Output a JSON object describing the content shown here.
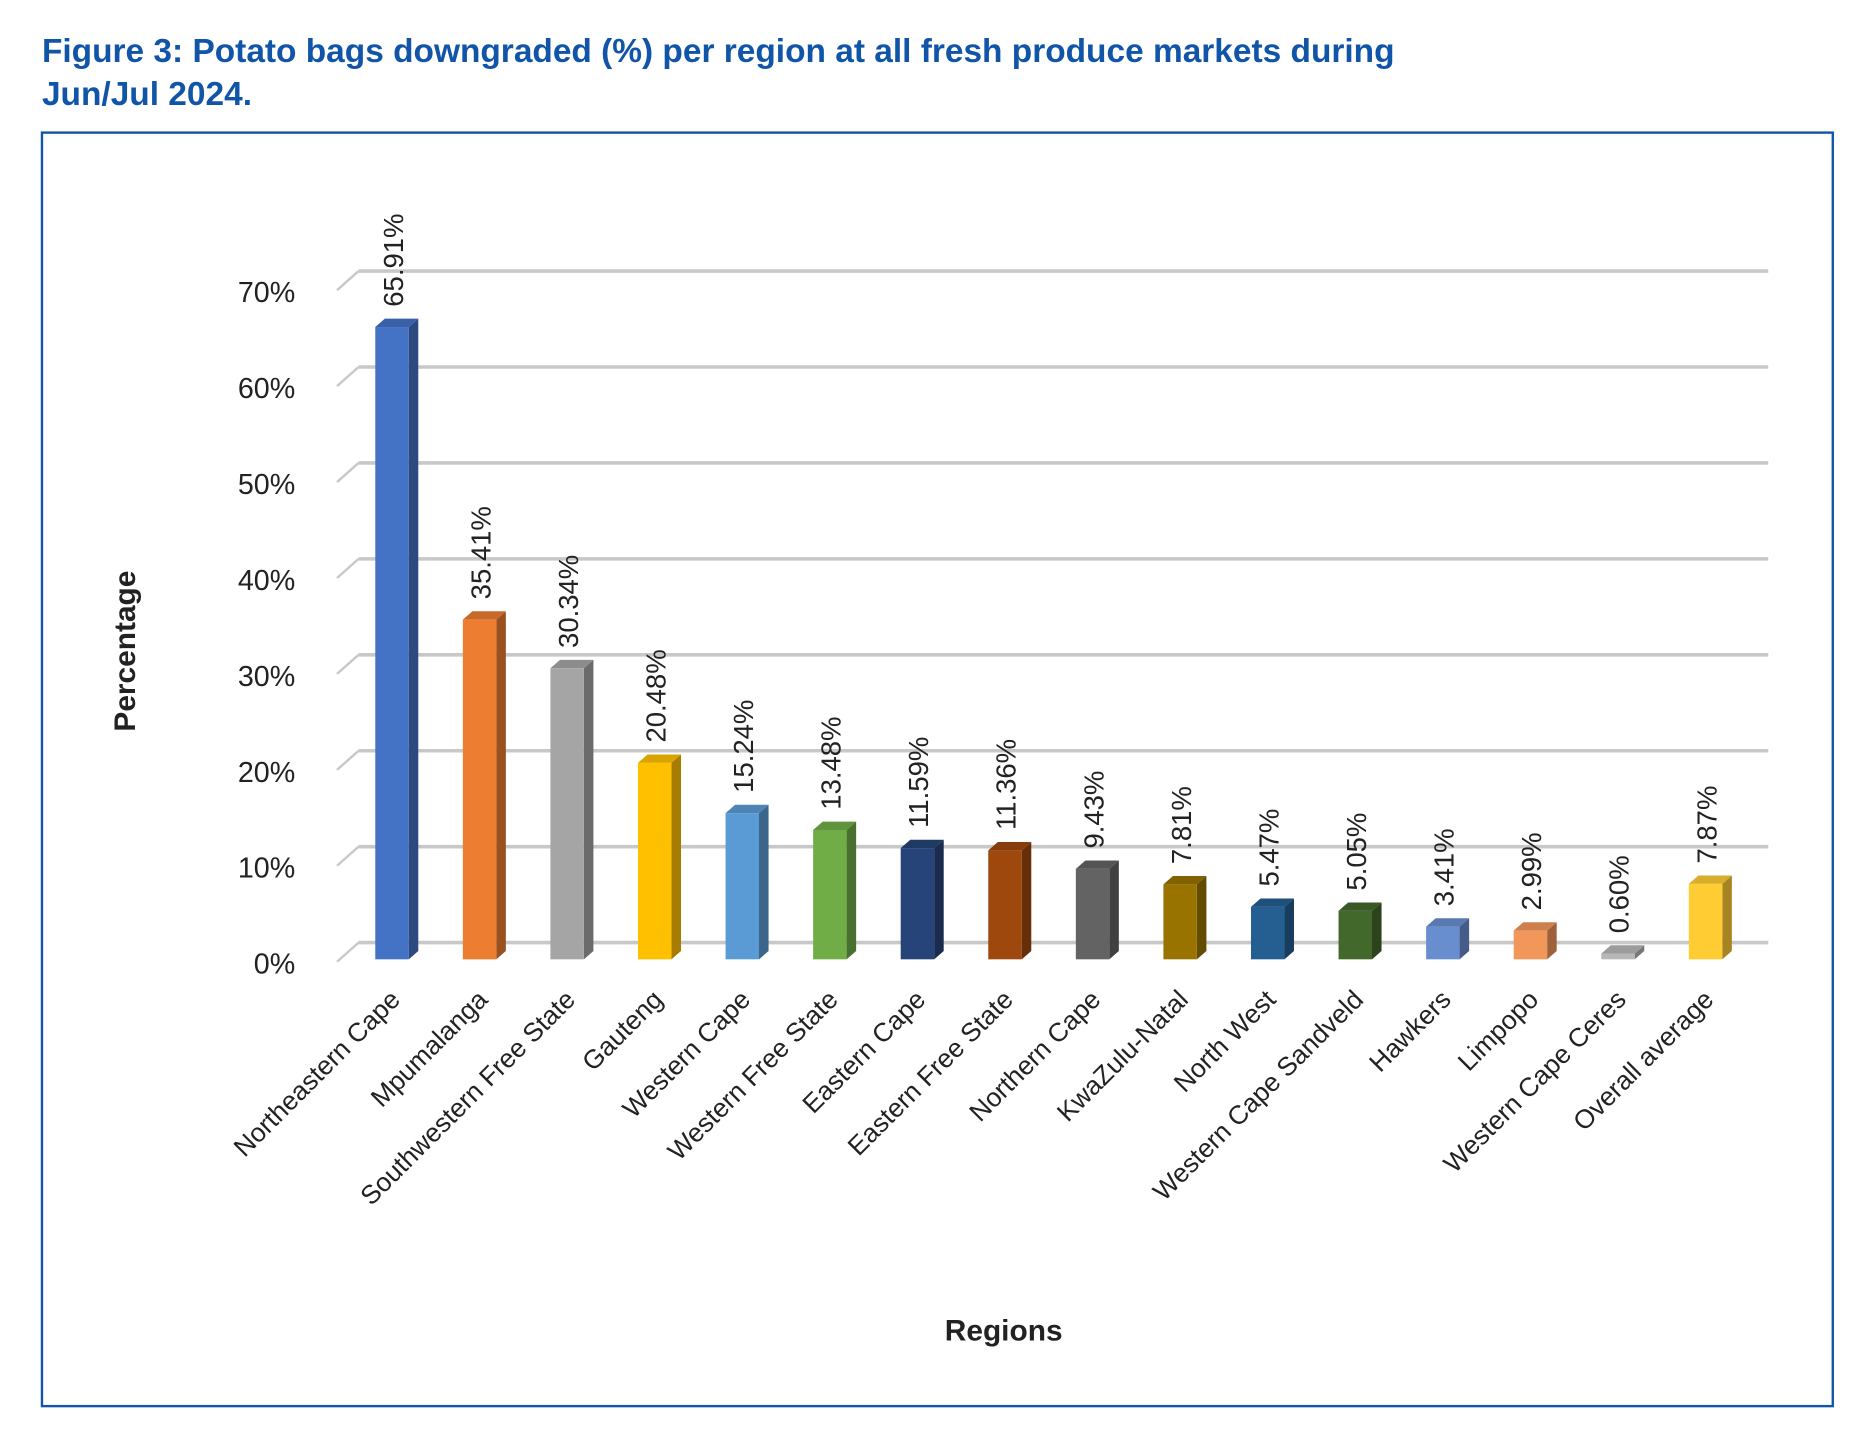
{
  "chart_data": {
    "type": "bar",
    "title_line1": "Figure 3: Potato bags downgraded (%) per region at all fresh produce markets during",
    "title_line2": "Jun/Jul 2024.",
    "xlabel": "Regions",
    "ylabel": "Percentage",
    "ylim": [
      0,
      70
    ],
    "yticks": [
      "0%",
      "10%",
      "20%",
      "30%",
      "40%",
      "50%",
      "60%",
      "70%"
    ],
    "grid": true,
    "categories": [
      "Northeastern Cape",
      "Mpumalanga",
      "Southwestern Free State",
      "Gauteng",
      "Western Cape",
      "Western Free State",
      "Eastern Cape",
      "Eastern Free State",
      "Northern Cape",
      "KwaZulu-Natal",
      "North West",
      "Western Cape Sandveld",
      "Hawkers",
      "Limpopo",
      "Western Cape Ceres",
      "Overall average"
    ],
    "values": [
      65.91,
      35.41,
      30.34,
      20.48,
      15.24,
      13.48,
      11.59,
      11.36,
      9.43,
      7.81,
      5.47,
      5.05,
      3.41,
      2.99,
      0.6,
      7.87
    ],
    "data_labels": [
      "65.91%",
      "35.41%",
      "30.34%",
      "20.48%",
      "15.24%",
      "13.48%",
      "11.59%",
      "11.36%",
      "9.43%",
      "7.81%",
      "5.47%",
      "5.05%",
      "3.41%",
      "2.99%",
      "0.60%",
      "7.87%"
    ],
    "colors": [
      "#4472c4",
      "#ed7d31",
      "#a5a5a5",
      "#ffc000",
      "#5b9bd5",
      "#70ad47",
      "#264478",
      "#9e480e",
      "#636363",
      "#997300",
      "#255e91",
      "#43682b",
      "#698ed0",
      "#f1975a",
      "#b7b7b7",
      "#ffcd33"
    ],
    "frame_color": "#1155a8"
  }
}
